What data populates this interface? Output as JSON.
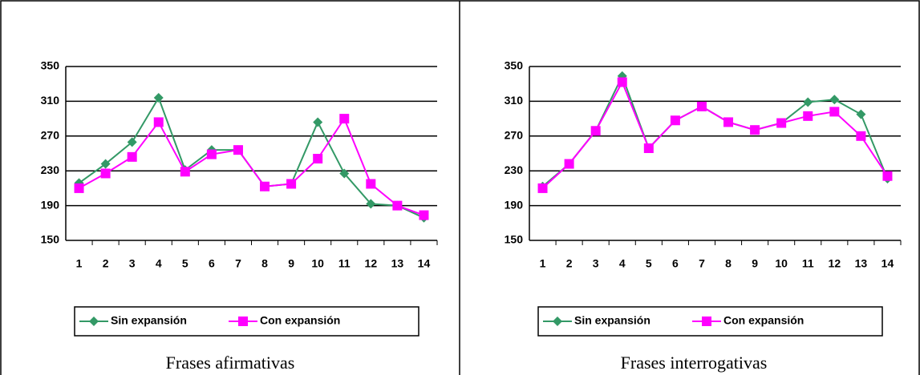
{
  "chart_data": [
    {
      "type": "line",
      "title": "Frases afirmativas",
      "categories": [
        "1",
        "2",
        "3",
        "4",
        "5",
        "6",
        "7",
        "8",
        "9",
        "10",
        "11",
        "12",
        "13",
        "14"
      ],
      "ylim": [
        150,
        350
      ],
      "yticks": [
        150,
        190,
        230,
        270,
        310,
        350
      ],
      "grid": true,
      "series": [
        {
          "name": "Sin expansión",
          "color": "#339966",
          "values": [
            216,
            238,
            263,
            314,
            231,
            254,
            254,
            212,
            215,
            286,
            227,
            192,
            190,
            176
          ]
        },
        {
          "name": "Con expansión",
          "color": "#ff00ff",
          "values": [
            210,
            227,
            246,
            286,
            229,
            249,
            254,
            212,
            215,
            244,
            290,
            215,
            190,
            179
          ]
        }
      ]
    },
    {
      "type": "line",
      "title": "Frases interrogativas",
      "categories": [
        "1",
        "2",
        "3",
        "4",
        "5",
        "6",
        "7",
        "8",
        "9",
        "10",
        "11",
        "12",
        "13",
        "14"
      ],
      "ylim": [
        150,
        350
      ],
      "yticks": [
        150,
        190,
        230,
        270,
        310,
        350
      ],
      "grid": true,
      "series": [
        {
          "name": "Sin expansión",
          "color": "#339966",
          "values": [
            212,
            238,
            276,
            339,
            256,
            288,
            304,
            286,
            277,
            285,
            309,
            312,
            295,
            221
          ]
        },
        {
          "name": "Con expansión",
          "color": "#ff00ff",
          "values": [
            210,
            238,
            276,
            332,
            256,
            288,
            304,
            286,
            277,
            285,
            293,
            298,
            270,
            224
          ]
        }
      ]
    }
  ]
}
